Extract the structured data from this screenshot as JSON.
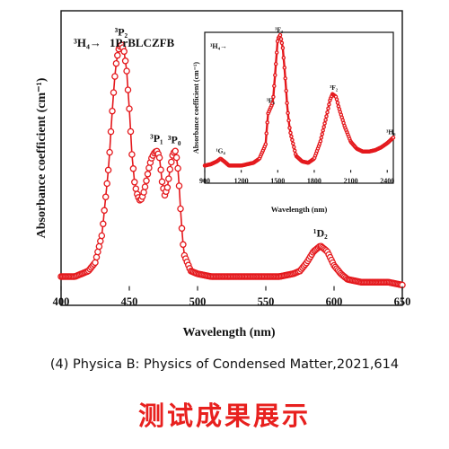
{
  "source_caption": "(4) Physica B: Physics of Condensed Matter,2021,614",
  "result_title": "测试成果展示",
  "colors": {
    "series": "#e4181c",
    "axis": "#111111",
    "title": "#e8201e"
  },
  "chart_data": [
    {
      "type": "line",
      "sample_label": "1PrBLCZFB",
      "transition_label": "³H₄→",
      "xlabel": "Wavelength (nm)",
      "ylabel": "Absorbance coefficient (cm⁻¹)",
      "xlim": [
        400,
        650
      ],
      "xticks": [
        400,
        450,
        500,
        550,
        600,
        650
      ],
      "y_tick_labels": false,
      "marker": "open-circle",
      "x": [
        400,
        405,
        410,
        415,
        420,
        425,
        430,
        435,
        438,
        440,
        442,
        444,
        446,
        448,
        450,
        452,
        454,
        456,
        458,
        460,
        462,
        464,
        466,
        468,
        470,
        472,
        474,
        476,
        478,
        480,
        482,
        484,
        486,
        488,
        490,
        495,
        500,
        510,
        520,
        530,
        540,
        550,
        560,
        570,
        575,
        580,
        585,
        590,
        595,
        600,
        605,
        610,
        620,
        630,
        640,
        650
      ],
      "y": [
        0.05,
        0.05,
        0.05,
        0.06,
        0.07,
        0.1,
        0.2,
        0.45,
        0.68,
        0.8,
        0.86,
        0.88,
        0.86,
        0.79,
        0.65,
        0.48,
        0.38,
        0.34,
        0.32,
        0.34,
        0.38,
        0.43,
        0.47,
        0.49,
        0.5,
        0.48,
        0.39,
        0.34,
        0.37,
        0.44,
        0.49,
        0.5,
        0.42,
        0.25,
        0.13,
        0.07,
        0.06,
        0.05,
        0.05,
        0.05,
        0.05,
        0.05,
        0.05,
        0.06,
        0.07,
        0.1,
        0.14,
        0.16,
        0.14,
        0.09,
        0.06,
        0.04,
        0.03,
        0.03,
        0.03,
        0.02
      ],
      "annotations": [
        {
          "text": "³P₂",
          "x": 444
        },
        {
          "text": "³P₁",
          "x": 470
        },
        {
          "text": "³P₀",
          "x": 483
        },
        {
          "text": "¹D₂",
          "x": 590
        }
      ]
    },
    {
      "type": "line",
      "transition_label": "³H₄→",
      "xlabel": "Wavelength (nm)",
      "ylabel": "Absorbance coefficient (cm⁻¹)",
      "xlim": [
        900,
        2450
      ],
      "xticks": [
        900,
        1200,
        1500,
        1800,
        2100,
        2400
      ],
      "y_tick_labels": false,
      "x": [
        900,
        950,
        1000,
        1030,
        1060,
        1100,
        1200,
        1300,
        1350,
        1400,
        1420,
        1440,
        1460,
        1480,
        1500,
        1520,
        1540,
        1560,
        1580,
        1600,
        1650,
        1700,
        1750,
        1800,
        1850,
        1900,
        1930,
        1950,
        1980,
        2000,
        2050,
        2100,
        2150,
        2200,
        2250,
        2300,
        2350,
        2400,
        2450
      ],
      "y": [
        0.05,
        0.06,
        0.08,
        0.1,
        0.08,
        0.05,
        0.05,
        0.07,
        0.1,
        0.2,
        0.42,
        0.46,
        0.5,
        0.72,
        0.95,
        0.98,
        0.9,
        0.7,
        0.45,
        0.3,
        0.12,
        0.08,
        0.07,
        0.1,
        0.22,
        0.4,
        0.52,
        0.56,
        0.54,
        0.47,
        0.33,
        0.22,
        0.17,
        0.15,
        0.15,
        0.16,
        0.18,
        0.21,
        0.25
      ],
      "annotations": [
        {
          "text": "¹G₄",
          "x": 1030
        },
        {
          "text": "³F₄",
          "x": 1440
        },
        {
          "text": "³F₃",
          "x": 1510
        },
        {
          "text": "³F₂",
          "x": 1960
        },
        {
          "text": "³H₆",
          "x": 2430
        }
      ]
    }
  ]
}
